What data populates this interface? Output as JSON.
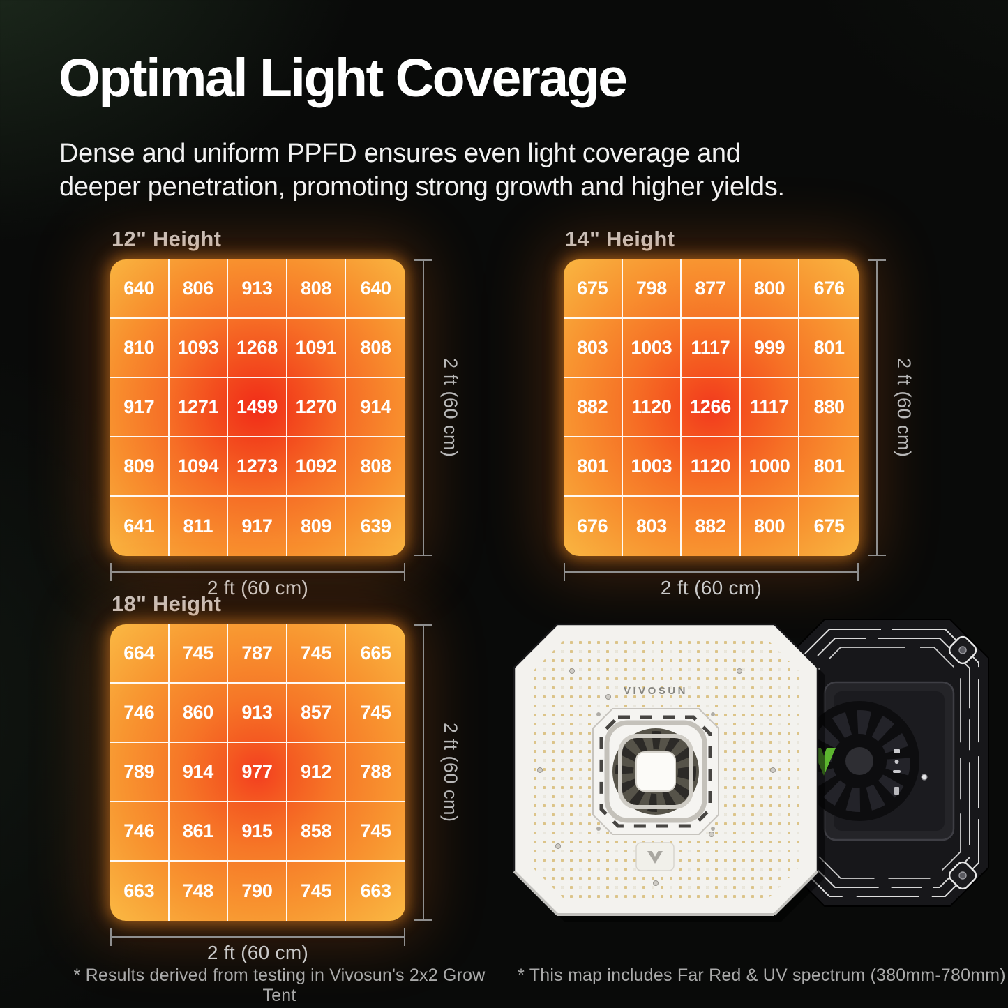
{
  "header": {
    "title": "Optimal Light Coverage",
    "subtitle_line1": "Dense and uniform PPFD ensures even light coverage and",
    "subtitle_line2": "deeper penetration, promoting strong growth and higher yields."
  },
  "footnotes": {
    "left": "* Results derived from testing in Vivosun's 2x2 Grow Tent",
    "right": "* This map includes Far Red & UV spectrum (380mm-780mm)"
  },
  "product": {
    "brand": "VIVOSUN"
  },
  "colors": {
    "background": "#090a09",
    "background_tint": "#2a3c2a",
    "title_text": "#ffffff",
    "section_header_text": "#c6c6c6",
    "dimension_line": "#8f8f8f",
    "dimension_label": "#b8b8b8",
    "footnote_text": "#aaaaaa",
    "cell_text": "#ffffff",
    "grid_line": "#ffffff",
    "heat_low": "#f9b440",
    "heat_mid": "#f8872c",
    "heat_high": "#f22f1c",
    "glow": "#ff9426"
  },
  "chart_data": [
    {
      "type": "heatmap",
      "title": "12\" Height",
      "width_label": "2 ft (60 cm)",
      "height_label": "2 ft (60 cm)",
      "rows": 5,
      "cols": 5,
      "values": [
        [
          640,
          806,
          913,
          808,
          640
        ],
        [
          810,
          1093,
          1268,
          1091,
          808
        ],
        [
          917,
          1271,
          1499,
          1270,
          914
        ],
        [
          809,
          1094,
          1273,
          1092,
          808
        ],
        [
          641,
          811,
          917,
          809,
          639
        ]
      ],
      "heat_stops": [
        "#f12c18 0%",
        "#f34e1e 32%",
        "#f66f26 62%",
        "#f8902e 100%",
        "#f9b440 141%"
      ]
    },
    {
      "type": "heatmap",
      "title": "14\" Height",
      "width_label": "2 ft (60 cm)",
      "height_label": "2 ft (60 cm)",
      "rows": 5,
      "cols": 5,
      "values": [
        [
          675,
          798,
          877,
          800,
          676
        ],
        [
          803,
          1003,
          1117,
          999,
          801
        ],
        [
          882,
          1120,
          1266,
          1117,
          880
        ],
        [
          801,
          1003,
          1120,
          1000,
          801
        ],
        [
          676,
          803,
          882,
          800,
          675
        ]
      ],
      "heat_stops": [
        "#f23a1d 0%",
        "#f4551f 26%",
        "#f67326 58%",
        "#f89330 98%",
        "#f9b541 141%"
      ]
    },
    {
      "type": "heatmap",
      "title": "18\" Height",
      "width_label": "2 ft (60 cm)",
      "height_label": "2 ft (60 cm)",
      "rows": 5,
      "cols": 5,
      "values": [
        [
          664,
          745,
          787,
          745,
          665
        ],
        [
          746,
          860,
          913,
          857,
          745
        ],
        [
          789,
          914,
          977,
          912,
          788
        ],
        [
          746,
          861,
          915,
          858,
          745
        ],
        [
          663,
          748,
          790,
          745,
          663
        ]
      ],
      "heat_stops": [
        "#f33e1f 0%",
        "#f45a21 22%",
        "#f67727 52%",
        "#f89530 94%",
        "#fab843 141%"
      ]
    }
  ]
}
